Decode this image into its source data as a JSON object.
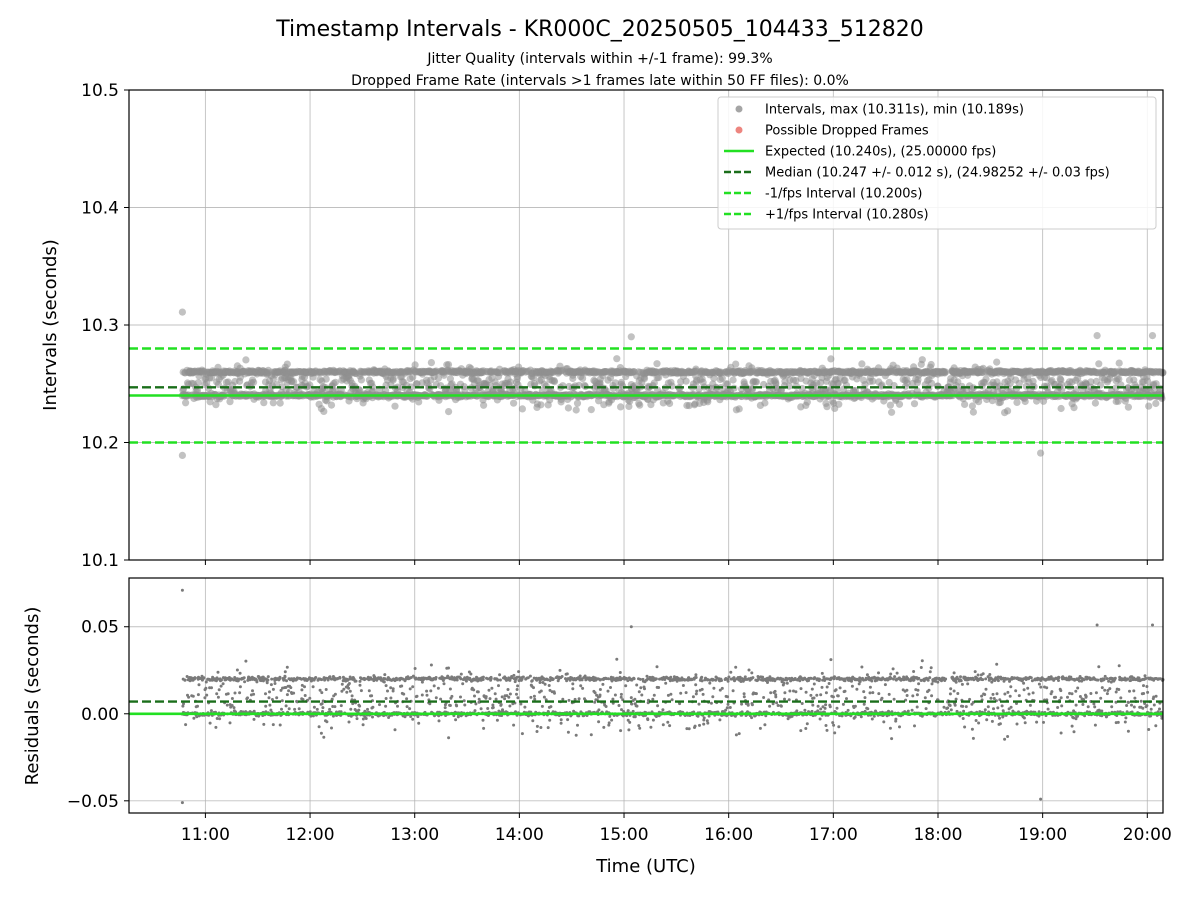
{
  "chart_data": {
    "type": "scatter",
    "title": "Timestamp Intervals - KR000C_20250505_104433_512820",
    "subtitle_lines": [
      "Jitter Quality (intervals within +/-1 frame): 99.3%",
      "Dropped Frame Rate (intervals >1 frames late within 50 FF files): 0.0%"
    ],
    "xlabel": "Time (UTC)",
    "x_tick_values": [
      11,
      12,
      13,
      14,
      15,
      16,
      17,
      18,
      19,
      20
    ],
    "x_tick_labels": [
      "11:00",
      "12:00",
      "13:00",
      "14:00",
      "15:00",
      "16:00",
      "17:00",
      "18:00",
      "19:00",
      "20:00"
    ],
    "xlim_hours": [
      10.27,
      20.15
    ],
    "data_x_range_hours": [
      10.78,
      20.15
    ],
    "top_panel": {
      "ylabel": "Intervals (seconds)",
      "ylim": [
        10.1,
        10.5
      ],
      "y_tick_values": [
        10.1,
        10.2,
        10.3,
        10.4,
        10.5
      ],
      "y_tick_labels": [
        "10.1",
        "10.2",
        "10.3",
        "10.4",
        "10.5"
      ],
      "interval_max": 10.311,
      "interval_min": 10.189,
      "interval_levels": [
        10.24,
        10.26
      ],
      "expected": 10.24,
      "median": 10.247,
      "minus_one_frame": 10.2,
      "plus_one_frame": 10.28,
      "legend_location": "upper right",
      "legend": [
        {
          "label": "Intervals, max (10.311s), min (10.189s)",
          "kind": "dot",
          "color": "#8f8f8f"
        },
        {
          "label": "Possible Dropped Frames",
          "kind": "dot",
          "color": "#e8675f"
        },
        {
          "label": "Expected (10.240s), (25.00000 fps)",
          "kind": "solid",
          "color": "#22e022"
        },
        {
          "label": "Median (10.247 +/- 0.012 s), (24.98252 +/- 0.03 fps)",
          "kind": "dashed",
          "color": "#1a6e1a"
        },
        {
          "label": "-1/fps Interval (10.200s)",
          "kind": "dashed",
          "color": "#22e022"
        },
        {
          "label": "+1/fps Interval (10.280s)",
          "kind": "dashed",
          "color": "#22e022"
        }
      ]
    },
    "bottom_panel": {
      "ylabel": "Residuals (seconds)",
      "ylim": [
        -0.057,
        0.078
      ],
      "y_tick_values": [
        -0.05,
        0.0,
        0.05
      ],
      "y_tick_labels": [
        "−0.05",
        "0.00",
        "0.05"
      ],
      "expected_residual": 0.0,
      "median_residual": 0.007,
      "residual_max": 0.072,
      "residual_min": -0.051
    },
    "outliers": [
      {
        "x": 10.78,
        "y": 10.311
      },
      {
        "x": 10.78,
        "y": 10.189
      },
      {
        "x": 18.98,
        "y": 10.191
      },
      {
        "x": 15.07,
        "y": 10.29
      },
      {
        "x": 19.52,
        "y": 10.291
      },
      {
        "x": 20.05,
        "y": 10.291
      }
    ],
    "n_points": 3200,
    "colors": {
      "points": "#8f8f8f",
      "residual_points": "#7a7a7a",
      "dropped": "#e8675f",
      "expected": "#22e022",
      "median": "#1a6e1a",
      "grid": "#b0b0b0"
    }
  }
}
